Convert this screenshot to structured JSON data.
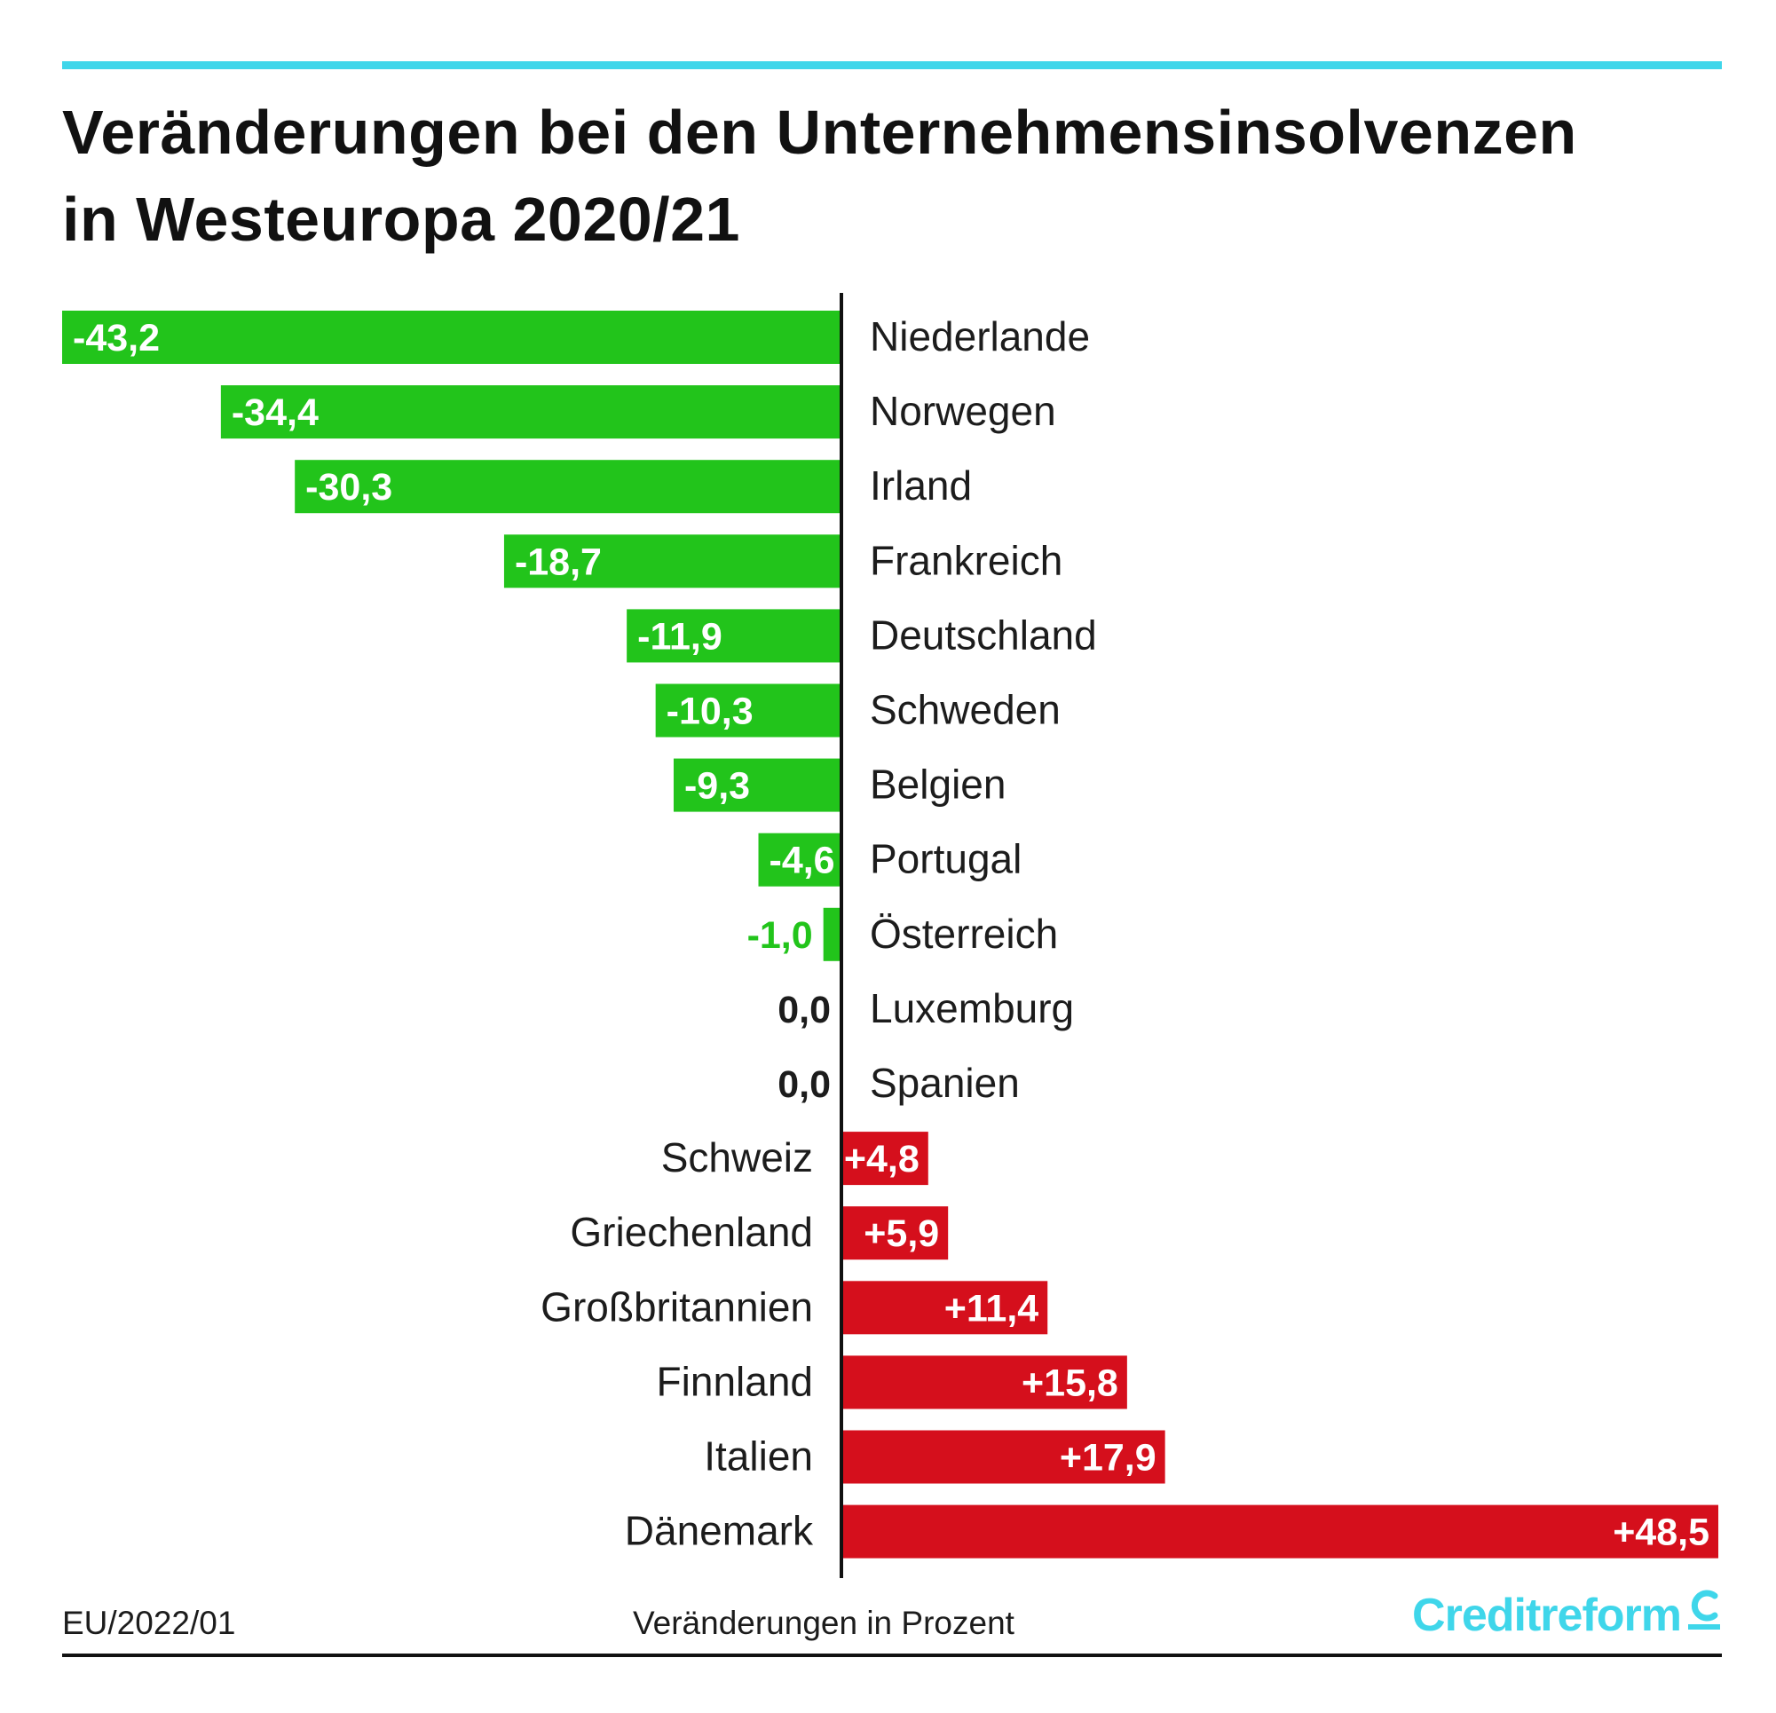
{
  "title": {
    "line1": "Veränderungen bei den Unternehmensinsolvenzen",
    "line2": "in Westeuropa 2020/21"
  },
  "colors": {
    "negative": "#22c41b",
    "positive": "#d50f1c",
    "zero_text": "#1c1c1c",
    "accent": "#3fd6ea",
    "axis": "#111111"
  },
  "chart_data": {
    "type": "bar",
    "orientation": "horizontal-diverging",
    "title": "Veränderungen bei den Unternehmensinsolvenzen in Westeuropa 2020/21",
    "xlabel": "Veränderungen in Prozent",
    "ylabel": "",
    "xlim": [
      -43.2,
      48.5
    ],
    "categories": [
      "Niederlande",
      "Norwegen",
      "Irland",
      "Frankreich",
      "Deutschland",
      "Schweden",
      "Belgien",
      "Portugal",
      "Österreich",
      "Luxemburg",
      "Spanien",
      "Schweiz",
      "Griechenland",
      "Großbritannien",
      "Finnland",
      "Italien",
      "Dänemark"
    ],
    "values": [
      -43.2,
      -34.4,
      -30.3,
      -18.7,
      -11.9,
      -10.3,
      -9.3,
      -4.6,
      -1.0,
      0.0,
      0.0,
      4.8,
      5.9,
      11.4,
      15.8,
      17.9,
      48.5
    ],
    "labels": [
      "-43,2",
      "-34,4",
      "-30,3",
      "-18,7",
      "-11,9",
      "-10,3",
      "-9,3",
      "-4,6",
      "-1,0",
      "0,0",
      "0,0",
      "+4,8",
      "+5,9",
      "+11,4",
      "+15,8",
      "+17,9",
      "+48,5"
    ]
  },
  "footer": {
    "code": "EU/2022/01",
    "unit": "Veränderungen in Prozent",
    "logo": "Creditreform"
  }
}
